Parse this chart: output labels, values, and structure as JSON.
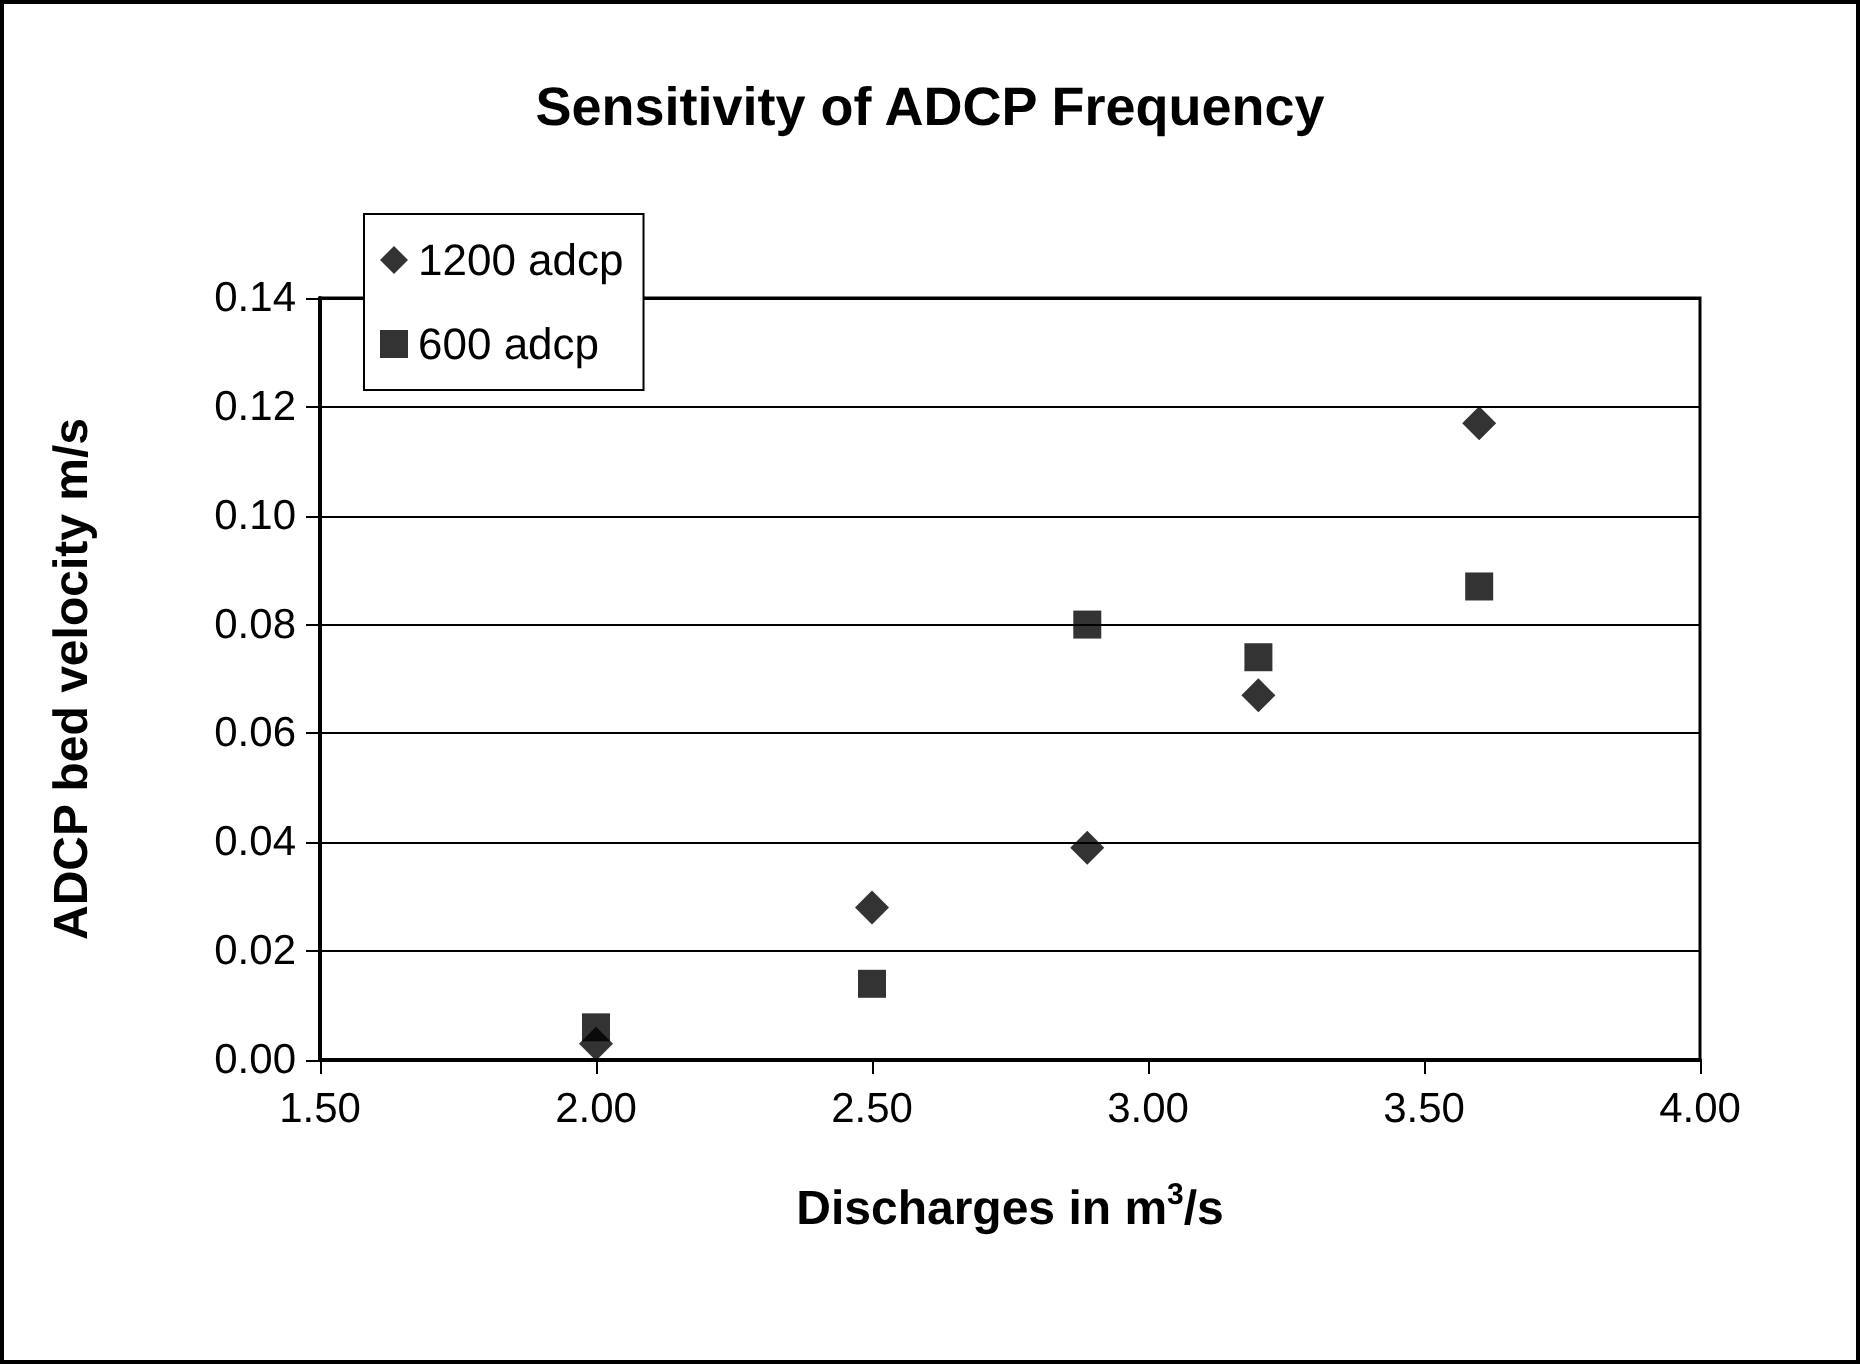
{
  "chart_data": {
    "type": "scatter",
    "title": "Sensitivity of ADCP Frequency",
    "xlabel": "Discharges in m$^{3}$/s",
    "ylabel": "ADCP bed velocity m/s",
    "series": [
      {
        "name": "1200 adcp",
        "color": "#000000",
        "marker": "diamond",
        "x": [
          2.0,
          2.5,
          2.89,
          3.2,
          3.6
        ],
        "values": [
          0.003,
          0.028,
          0.039,
          0.067,
          0.117
        ]
      },
      {
        "name": "600 adcp",
        "color": "#000000",
        "marker": "square",
        "x": [
          2.0,
          2.5,
          2.89,
          3.2,
          3.6
        ],
        "values": [
          0.006,
          0.014,
          0.08,
          0.074,
          0.087
        ]
      }
    ],
    "xlim": [
      1.5,
      4.0
    ],
    "xticks": [
      {
        "value": 1.5,
        "label": "1.50"
      },
      {
        "value": 2,
        "label": "2.00"
      },
      {
        "value": 2.5,
        "label": "2.50"
      },
      {
        "value": 3,
        "label": "3.00"
      },
      {
        "value": 3.5,
        "label": "3.50"
      },
      {
        "value": 4,
        "label": "4.00"
      }
    ],
    "ylim": [
      0,
      0.14
    ],
    "yticks": [
      {
        "value": 0,
        "label": "0.00"
      },
      0.02,
      0.04,
      0.06,
      0.08,
      {
        "value": 0.1,
        "label": "0.10"
      },
      0.12,
      0.14
    ],
    "grid": "y",
    "legend": "top left"
  }
}
